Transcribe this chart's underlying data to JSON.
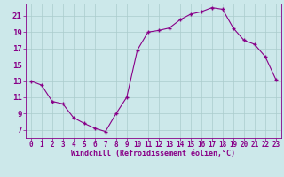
{
  "x": [
    0,
    1,
    2,
    3,
    4,
    5,
    6,
    7,
    8,
    9,
    10,
    11,
    12,
    13,
    14,
    15,
    16,
    17,
    18,
    19,
    20,
    21,
    22,
    23
  ],
  "y": [
    13,
    12.5,
    10.5,
    10.2,
    8.5,
    7.8,
    7.2,
    6.8,
    9.0,
    11.0,
    16.8,
    19.0,
    19.2,
    19.5,
    20.5,
    21.2,
    21.5,
    22.0,
    21.8,
    19.5,
    18.0,
    17.5,
    16.0,
    13.2
  ],
  "xlim": [
    -0.5,
    23.5
  ],
  "ylim": [
    6,
    22.5
  ],
  "yticks": [
    7,
    9,
    11,
    13,
    15,
    17,
    19,
    21
  ],
  "xticks": [
    0,
    1,
    2,
    3,
    4,
    5,
    6,
    7,
    8,
    9,
    10,
    11,
    12,
    13,
    14,
    15,
    16,
    17,
    18,
    19,
    20,
    21,
    22,
    23
  ],
  "xlabel": "Windchill (Refroidissement éolien,°C)",
  "line_color": "#880088",
  "marker": "+",
  "bg_color": "#cce8ea",
  "grid_color": "#aacccc",
  "label_color": "#880088",
  "tick_color": "#880088",
  "xlabel_fontsize": 6.0,
  "ytick_fontsize": 6.5,
  "xtick_fontsize": 5.5
}
